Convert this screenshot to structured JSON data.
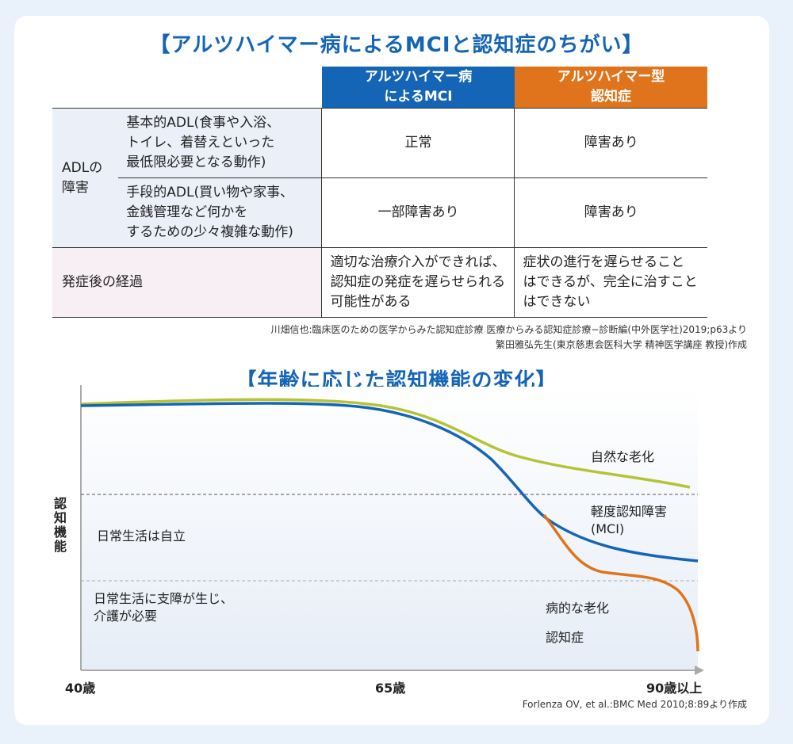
{
  "title_top": "【アルツハイマー病によるMCIと認知症のちがい】",
  "table": {
    "col_mci": "アルツハイマー病\nによるMCI",
    "col_dementia": "アルツハイマー型\n認知症",
    "adl_label": "ADLの\n障害",
    "rows": [
      {
        "label": "基本的ADL(食事や入浴、\nトイレ、着替えといった\n最低限必要となる動作)",
        "mci": "正常",
        "dementia": "障害あり"
      },
      {
        "label": "手段的ADL(買い物や家事、\n金銭管理など何かを\nするための少々複雑な動作)",
        "mci": "一部障害あり",
        "dementia": "障害あり"
      }
    ],
    "course": {
      "label": "発症後の経過",
      "mci": "適切な治療介入ができれば、\n認知症の発症を遅らせられる\n可能性がある",
      "dementia": "症状の進行を遅らせること\nはできるが、完全に治すこと\nはできない"
    }
  },
  "source_1": "川畑信也:臨床医のための医学からみた認知症診療 医療からみる認知症診療−診断編(中外医学社)2019;p63より",
  "source_2": "繁田雅弘先生(東京慈恵会医科大学 精神医学講座 教授)作成",
  "title_bottom": "【年齢に応じた認知機能の変化】",
  "chart_data": {
    "type": "line",
    "ylabel": "認知機能",
    "x_ticks": [
      "40歳",
      "65歳",
      "90歳以上"
    ],
    "zones": [
      "日常生活は自立",
      "日常生活に支障が生じ、\n介護が必要"
    ],
    "series": [
      {
        "name": "自然な老化",
        "color": "#b5c334"
      },
      {
        "name": "軽度認知障害\n(MCI)",
        "color": "#1565b7"
      },
      {
        "name": "病的な老化",
        "color": "#e0741c"
      }
    ],
    "annotation": "認知症"
  },
  "source_3": "Forlenza OV, et al.:BMC Med 2010;8:89より作成"
}
